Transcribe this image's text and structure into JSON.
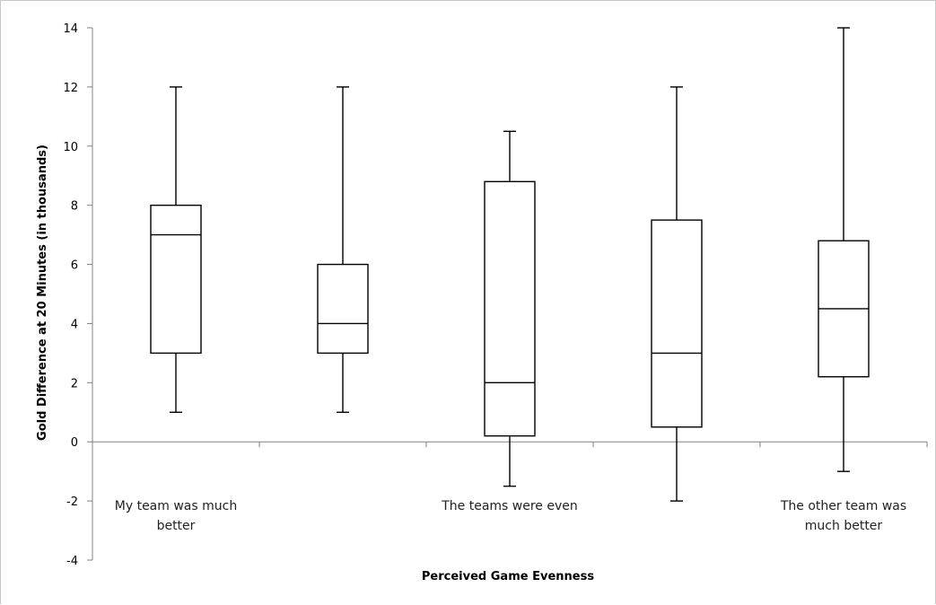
{
  "chart_data": {
    "type": "box",
    "title": "",
    "xlabel": "Perceived Game Evenness",
    "ylabel": "Gold Difference at 20 Minutes (in thousands)",
    "ylim": [
      -4,
      14
    ],
    "yticks": [
      "-4",
      "-2",
      "0",
      "2",
      "4",
      "6",
      "8",
      "10",
      "12",
      "14"
    ],
    "grid": false,
    "legend": "none",
    "category_labels": [
      {
        "position": 1,
        "lines": [
          "My team was much",
          "better"
        ]
      },
      {
        "position": 3,
        "lines": [
          "The teams were even"
        ]
      },
      {
        "position": 5,
        "lines": [
          "The other team was",
          "much better"
        ]
      }
    ],
    "boxes": [
      {
        "position": 1,
        "min": 1,
        "q1": 3,
        "median": 7,
        "q3": 8,
        "max": 12
      },
      {
        "position": 2,
        "min": 1,
        "q1": 3,
        "median": 4,
        "q3": 6,
        "max": 12
      },
      {
        "position": 3,
        "min": -1.5,
        "q1": 0.2,
        "median": 2,
        "q3": 8.8,
        "max": 10.5
      },
      {
        "position": 4,
        "min": -2,
        "q1": 0.5,
        "median": 3,
        "q3": 7.5,
        "max": 12
      },
      {
        "position": 5,
        "min": -1,
        "q1": 2.2,
        "median": 4.5,
        "q3": 6.8,
        "max": 14
      }
    ],
    "colors": {
      "box_fill": "#ffffff",
      "box_stroke": "#000000",
      "axis": "#808080"
    }
  }
}
